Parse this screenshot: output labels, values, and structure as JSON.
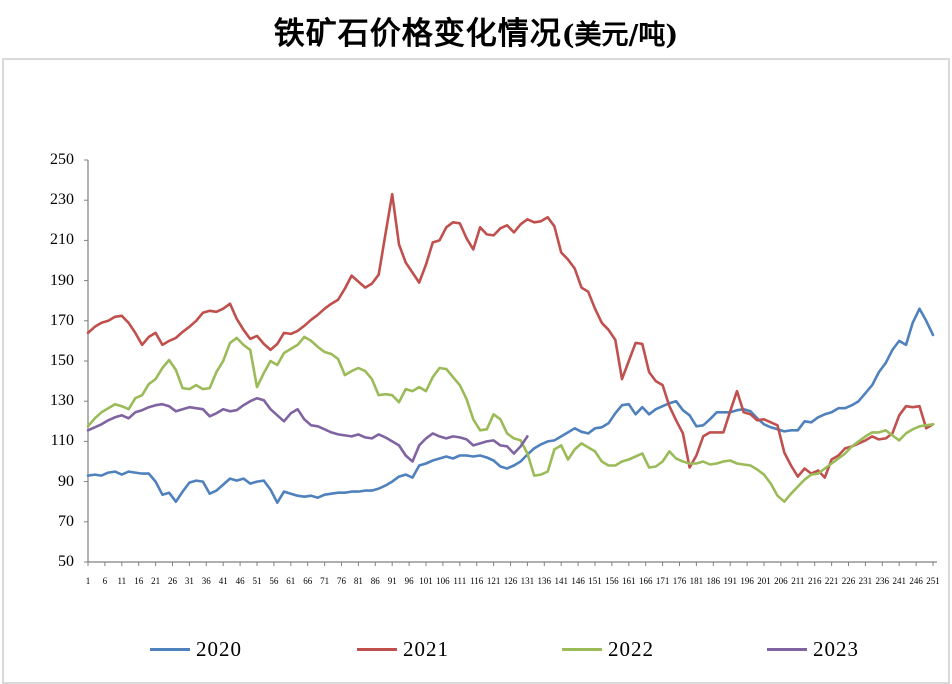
{
  "page": {
    "title_main": "铁矿石价格变化情况",
    "title_unit": "(美元/吨)"
  },
  "chart_data": {
    "type": "line",
    "title": "铁矿石价格变化情况(美元/吨)",
    "xlabel": "",
    "ylabel": "",
    "ylim": [
      50,
      250
    ],
    "y_ticks": [
      50,
      70,
      90,
      110,
      130,
      150,
      170,
      190,
      210,
      230,
      250
    ],
    "x_ticks": [
      1,
      6,
      11,
      16,
      21,
      26,
      31,
      36,
      41,
      46,
      51,
      56,
      61,
      66,
      71,
      76,
      81,
      86,
      91,
      96,
      101,
      106,
      111,
      116,
      121,
      126,
      131,
      136,
      141,
      146,
      151,
      156,
      161,
      166,
      171,
      176,
      181,
      186,
      191,
      196,
      201,
      206,
      211,
      216,
      221,
      226,
      231,
      236,
      241,
      246,
      251
    ],
    "x_range": [
      1,
      251
    ],
    "x_start": 1,
    "x_step": 2,
    "grid": false,
    "legend_position": "bottom",
    "axis_color": "#808080",
    "series": [
      {
        "name": "2020",
        "color": "#4f81bd",
        "values": [
          93,
          93.5,
          93,
          94.5,
          95,
          93.5,
          95,
          94.5,
          94,
          94,
          90,
          83.5,
          84.5,
          80,
          85,
          89.5,
          90.5,
          90,
          84,
          85.5,
          88.5,
          91.5,
          90.5,
          91.5,
          89,
          90,
          90.5,
          86,
          79.5,
          85,
          84,
          83,
          82.5,
          83,
          82,
          83.5,
          84,
          84.5,
          84.5,
          85,
          85,
          85.5,
          85.5,
          86.5,
          88,
          90,
          92.5,
          93.5,
          92,
          98,
          99,
          100.5,
          101.5,
          102.5,
          101.5,
          103,
          103,
          102.5,
          103,
          102,
          100.5,
          97.5,
          96.5,
          98,
          100,
          103.5,
          106.5,
          108.5,
          110,
          110.5,
          112.5,
          114.5,
          116.5,
          114.8,
          114,
          116.5,
          117,
          119,
          124,
          128,
          128.5,
          123.5,
          127,
          123.5,
          126,
          127.5,
          129,
          130,
          125.5,
          123,
          117.5,
          118,
          121,
          124.5,
          124.5,
          124.5,
          125.5,
          126,
          125,
          121.5,
          118.5,
          117,
          116,
          115,
          115.5,
          115.5,
          120,
          119.5,
          122,
          123.5,
          124.5,
          126.5,
          126.5,
          128,
          130,
          134,
          138,
          144.5,
          149,
          155.5,
          160,
          158,
          169,
          176,
          170,
          163
        ]
      },
      {
        "name": "2021",
        "color": "#c0504d",
        "values": [
          164,
          167,
          169,
          170,
          172,
          172.5,
          169,
          164,
          158,
          162,
          164,
          158,
          160,
          161.5,
          164.5,
          167,
          170,
          174,
          175,
          174.5,
          176,
          178.5,
          171,
          165.5,
          161,
          162.5,
          158.5,
          155.5,
          158.5,
          164,
          163.5,
          165,
          167.5,
          170.5,
          173,
          176,
          178.5,
          180.5,
          186,
          192.5,
          189.5,
          186.5,
          188.5,
          193,
          213,
          233,
          208,
          199,
          194,
          189,
          198,
          209,
          210,
          216.5,
          219,
          218.5,
          211,
          205.5,
          216.5,
          213,
          212.5,
          216,
          217.5,
          214,
          218,
          220.5,
          219,
          219.5,
          221.5,
          217,
          204,
          200.5,
          196,
          186.5,
          184.5,
          176,
          169,
          165.5,
          160.5,
          141,
          150,
          159,
          158.5,
          144.5,
          140,
          138,
          127.5,
          120.5,
          114,
          97,
          103,
          112.5,
          114.5,
          114.5,
          114.5,
          125,
          135,
          124.5,
          123.5,
          120.5,
          121,
          119.5,
          118,
          104.5,
          98,
          92.5,
          96.5,
          94,
          95.5,
          92,
          101,
          103,
          106.5,
          107.5,
          109,
          110.5,
          112.5,
          111,
          111.5,
          114,
          123,
          127.5,
          127,
          127.5,
          116.5,
          118.5
        ]
      },
      {
        "name": "2022",
        "color": "#9bbb59",
        "values": [
          117.5,
          121.5,
          124.5,
          126.5,
          128.5,
          127.5,
          126,
          131.5,
          133,
          138.5,
          141,
          146.5,
          150.5,
          145.5,
          136.5,
          136,
          138,
          136,
          136.5,
          144.5,
          150,
          159,
          161.5,
          158,
          155.5,
          137,
          144,
          150,
          148,
          154,
          156,
          158,
          162,
          160,
          157,
          154.5,
          153.5,
          151,
          143,
          145,
          146.5,
          145,
          141,
          133,
          133.5,
          133,
          129.5,
          136,
          135,
          137,
          135,
          142,
          146.5,
          146,
          142,
          138,
          131,
          121,
          115.5,
          116,
          123.5,
          121,
          114,
          111.5,
          110.5,
          104,
          93,
          93.5,
          95,
          106,
          108,
          101,
          106,
          109,
          107,
          105,
          100,
          98,
          98,
          100,
          101,
          102.5,
          104,
          97,
          97.5,
          100,
          105,
          101.5,
          100,
          99,
          99,
          100,
          98.5,
          99,
          100,
          100.5,
          99,
          98.5,
          98,
          96,
          93.5,
          89,
          83,
          80,
          84,
          87.5,
          91,
          93.5,
          94,
          96.5,
          99,
          101.5,
          104,
          107.5,
          110,
          112.5,
          114.5,
          114.5,
          115.5,
          113,
          110.5,
          114,
          116,
          117.5,
          118,
          118.5
        ]
      },
      {
        "name": "2023",
        "color": "#8064a2",
        "values": [
          115.5,
          117,
          118.5,
          120.5,
          122,
          123,
          121.5,
          124.5,
          125.5,
          127,
          128,
          128.5,
          127.5,
          125,
          126,
          127,
          126.5,
          126,
          122.5,
          124,
          126,
          125,
          125.5,
          128,
          130,
          131.5,
          130.5,
          126,
          123,
          120,
          124,
          126,
          121,
          118,
          117.5,
          116,
          114.5,
          113.5,
          113,
          112.5,
          113.5,
          112,
          111.5,
          113.5,
          112,
          110,
          108,
          103,
          100,
          108,
          111.5,
          114,
          112.5,
          111.5,
          112.5,
          112,
          111,
          108,
          109,
          110,
          110.5,
          108,
          107.5,
          104,
          107.5,
          112.5
        ]
      }
    ]
  }
}
